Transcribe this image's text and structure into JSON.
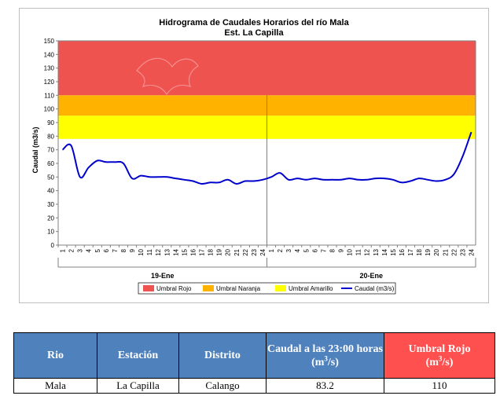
{
  "chart_data": {
    "type": "line",
    "title": "Hidrograma de Caudales Horarios del río Mala",
    "subtitle": "Est. La Capilla",
    "ylabel": "Caudal  (m3/s)",
    "xlabel": "",
    "ylim": [
      0,
      150
    ],
    "yticks": [
      0,
      10,
      20,
      30,
      40,
      50,
      60,
      70,
      80,
      90,
      100,
      110,
      120,
      130,
      140,
      150
    ],
    "x_tick_labels": [
      "1",
      "2",
      "3",
      "4",
      "5",
      "6",
      "7",
      "8",
      "9",
      "10",
      "11",
      "12",
      "13",
      "14",
      "15",
      "16",
      "17",
      "18",
      "19",
      "20",
      "21",
      "22",
      "23",
      "24",
      "1",
      "2",
      "3",
      "4",
      "5",
      "6",
      "7",
      "8",
      "9",
      "10",
      "11",
      "12",
      "13",
      "14",
      "15",
      "16",
      "17",
      "18",
      "19",
      "20",
      "21",
      "22",
      "23",
      "24"
    ],
    "day_labels": [
      "19-Ene",
      "20-Ene"
    ],
    "bands": [
      {
        "name": "Umbral Rojo",
        "from": 110,
        "to": 150,
        "color": "#ef5350"
      },
      {
        "name": "Umbral Naranja",
        "from": 95,
        "to": 110,
        "color": "#ffb300"
      },
      {
        "name": "Umbral Amarillo",
        "from": 78,
        "to": 95,
        "color": "#ffff00"
      }
    ],
    "series": [
      {
        "name": "Caudal (m3/s)",
        "color": "#0000cc",
        "values": [
          70,
          73,
          50,
          57,
          62,
          61,
          61,
          60,
          49,
          51,
          50,
          50,
          50,
          49,
          48,
          47,
          45,
          46,
          46,
          48,
          45,
          47,
          47,
          48,
          50,
          53,
          48,
          49,
          48,
          49,
          48,
          48,
          48,
          49,
          48,
          48,
          49,
          49,
          48,
          46,
          47,
          49,
          48,
          47,
          48,
          52,
          65,
          83
        ]
      }
    ],
    "legend_position": "bottom",
    "grid": false
  },
  "table": {
    "headers": [
      "Rio",
      "Estación",
      "Distrito",
      "Caudal a las 23:00 horas",
      "(m",
      "3",
      "/s)",
      "Umbral Rojo",
      "(m",
      "3",
      "/s)"
    ],
    "row": [
      "Mala",
      "La Capilla",
      "Calango",
      "83.2",
      "110"
    ]
  }
}
